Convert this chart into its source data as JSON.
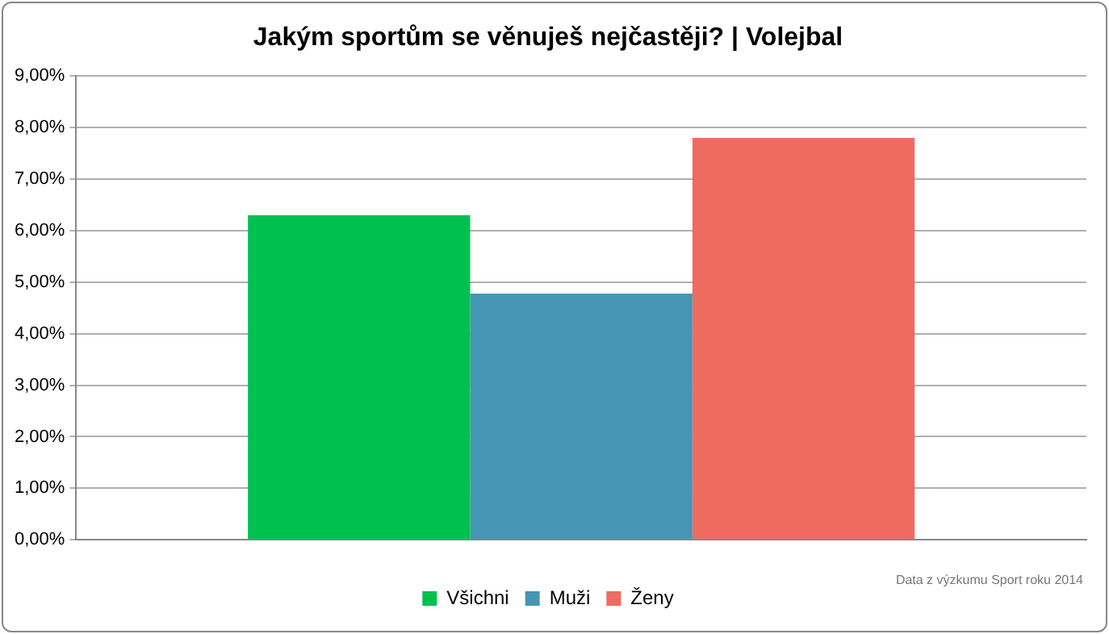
{
  "chart_data": {
    "type": "bar",
    "title": "Jakým sportům se věnuješ nejčastěji? | Volejbal",
    "categories": [
      null
    ],
    "series": [
      {
        "name": "Všichni",
        "color": "#00c050",
        "values": [
          6.3
        ]
      },
      {
        "name": "Muži",
        "color": "#4596b4",
        "values": [
          4.78
        ]
      },
      {
        "name": "Ženy",
        "color": "#ee6b60",
        "values": [
          7.8
        ]
      }
    ],
    "ylim": [
      0,
      9
    ],
    "yticks": [
      {
        "value": 0,
        "label": "0,00%"
      },
      {
        "value": 1,
        "label": "1,00%"
      },
      {
        "value": 2,
        "label": "2,00%"
      },
      {
        "value": 3,
        "label": "3,00%"
      },
      {
        "value": 4,
        "label": "4,00%"
      },
      {
        "value": 5,
        "label": "5,00%"
      },
      {
        "value": 6,
        "label": "6,00%"
      },
      {
        "value": 7,
        "label": "7,00%"
      },
      {
        "value": 8,
        "label": "8,00%"
      },
      {
        "value": 9,
        "label": "9,00%"
      }
    ],
    "grid": "y",
    "legend": "bottom",
    "annotations": [
      "Data z výzkumu Sport roku 2014"
    ]
  }
}
